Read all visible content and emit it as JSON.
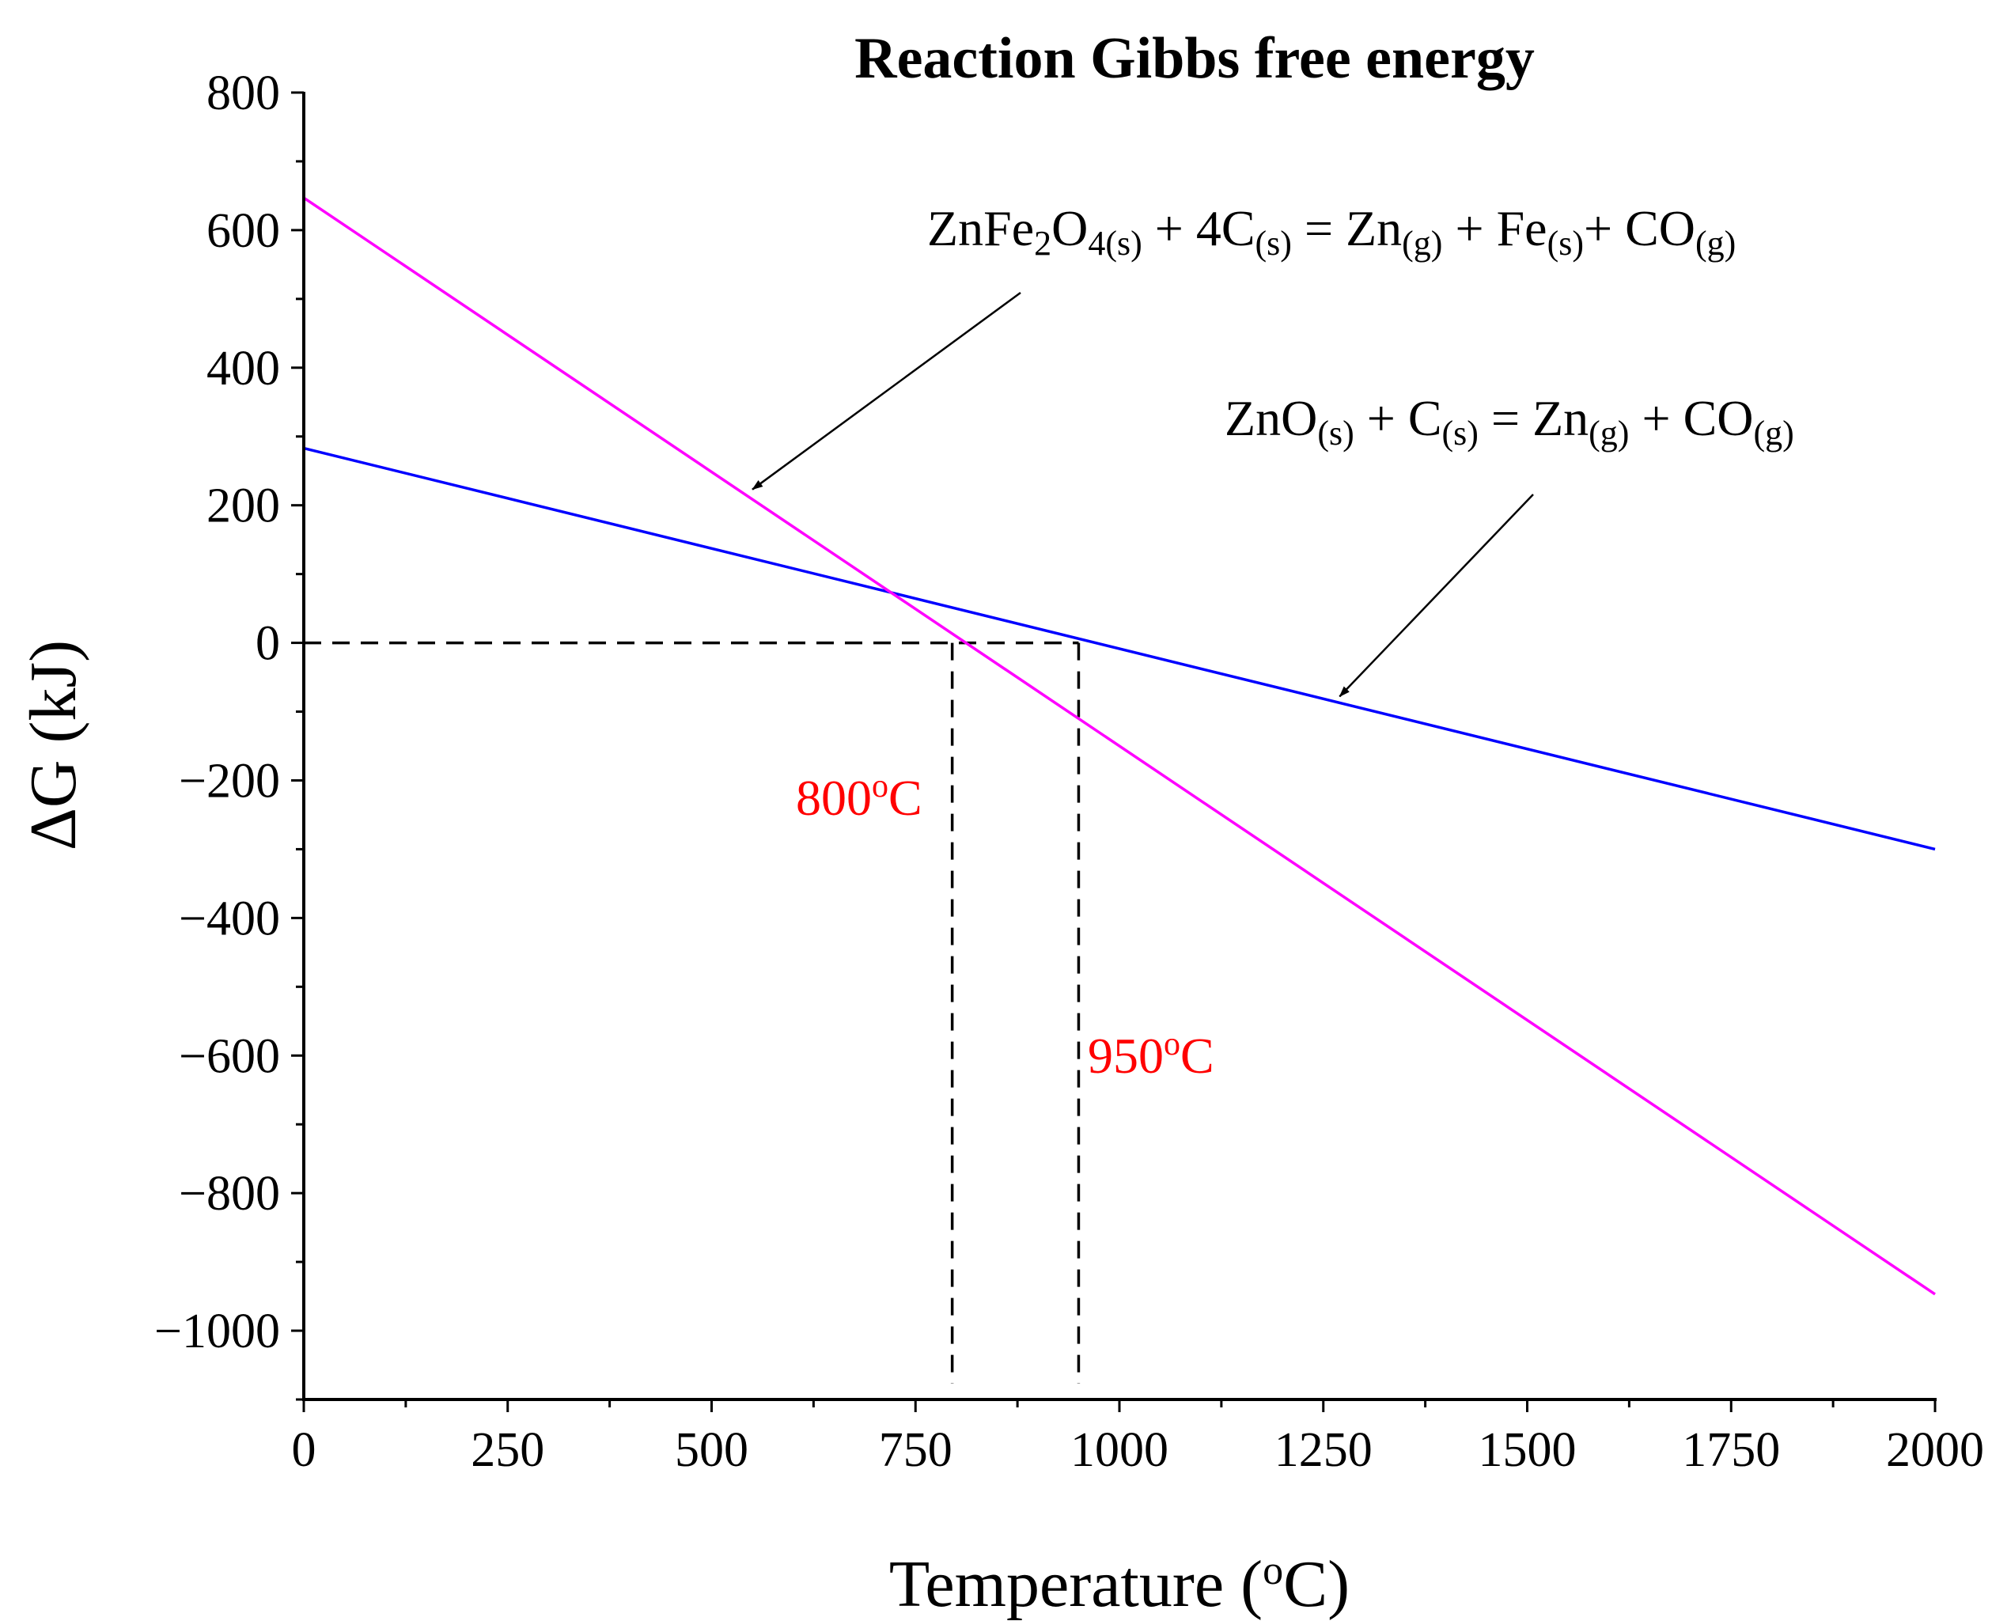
{
  "chart_data": {
    "type": "line",
    "title": "Reaction Gibbs free energy",
    "xlabel": {
      "main": "Temperature (",
      "sup": "o",
      "tail": "C)"
    },
    "ylabel": "ΔG (kJ)",
    "xlim": [
      0,
      2000
    ],
    "ylim": [
      -1100,
      800
    ],
    "xticks": [
      0,
      250,
      500,
      750,
      1000,
      1250,
      1500,
      1750,
      2000
    ],
    "xtick_labels": [
      "0",
      "250",
      "500",
      "750",
      "1000",
      "1250",
      "1500",
      "1750",
      "2000"
    ],
    "yticks": [
      800,
      600,
      400,
      200,
      0,
      -200,
      -400,
      -600,
      -800,
      -1000
    ],
    "ytick_labels": [
      "800",
      "600",
      "400",
      "200",
      "0",
      "−200",
      "−400",
      "−600",
      "−800",
      "−1000"
    ],
    "series": [
      {
        "name": "ZnO(s) + C(s) = Zn(g) + CO(g)",
        "color": "#0000ff",
        "x": [
          0,
          2000
        ],
        "y": [
          283,
          -300
        ]
      },
      {
        "name": "ZnFe2O4(s) + 4C(s) = Zn(g) + Fe(s) + CO(g)",
        "color": "#ff00ff",
        "x": [
          0,
          2000
        ],
        "y": [
          647,
          -947
        ]
      }
    ],
    "reference_lines": [
      {
        "x": 795,
        "y": 0,
        "label_main": "800",
        "label_sup": "o",
        "label_tail": "C"
      },
      {
        "x": 950,
        "y": 0,
        "label_main": "950",
        "label_sup": "o",
        "label_tail": "C"
      }
    ],
    "annotations": {
      "znfe2o4": {
        "parts": [
          {
            "t": "ZnFe",
            "sub": false
          },
          {
            "t": "2",
            "sub": true
          },
          {
            "t": "O",
            "sub": false
          },
          {
            "t": "4(s)",
            "sub": true
          },
          {
            "t": " + 4C",
            "sub": false
          },
          {
            "t": "(s)",
            "sub": true
          },
          {
            "t": " = Zn",
            "sub": false
          },
          {
            "t": "(g)",
            "sub": true
          },
          {
            "t": " + Fe",
            "sub": false
          },
          {
            "t": "(s)",
            "sub": true
          },
          {
            "t": "+ CO",
            "sub": false
          },
          {
            "t": "(g)",
            "sub": true
          }
        ],
        "arrow_to": {
          "x": 550,
          "y": 223
        }
      },
      "zno": {
        "parts": [
          {
            "t": "ZnO",
            "sub": false
          },
          {
            "t": "(s)",
            "sub": true
          },
          {
            "t": " + C",
            "sub": false
          },
          {
            "t": "(s)",
            "sub": true
          },
          {
            "t": " = Zn",
            "sub": false
          },
          {
            "t": "(g)",
            "sub": true
          },
          {
            "t": " + CO",
            "sub": false
          },
          {
            "t": "(g)",
            "sub": true
          }
        ],
        "arrow_to": {
          "x": 1270,
          "y": -78
        }
      }
    },
    "colors": {
      "axis": "#000000",
      "reference": "#000000",
      "reference_label": "#ff0000"
    }
  }
}
